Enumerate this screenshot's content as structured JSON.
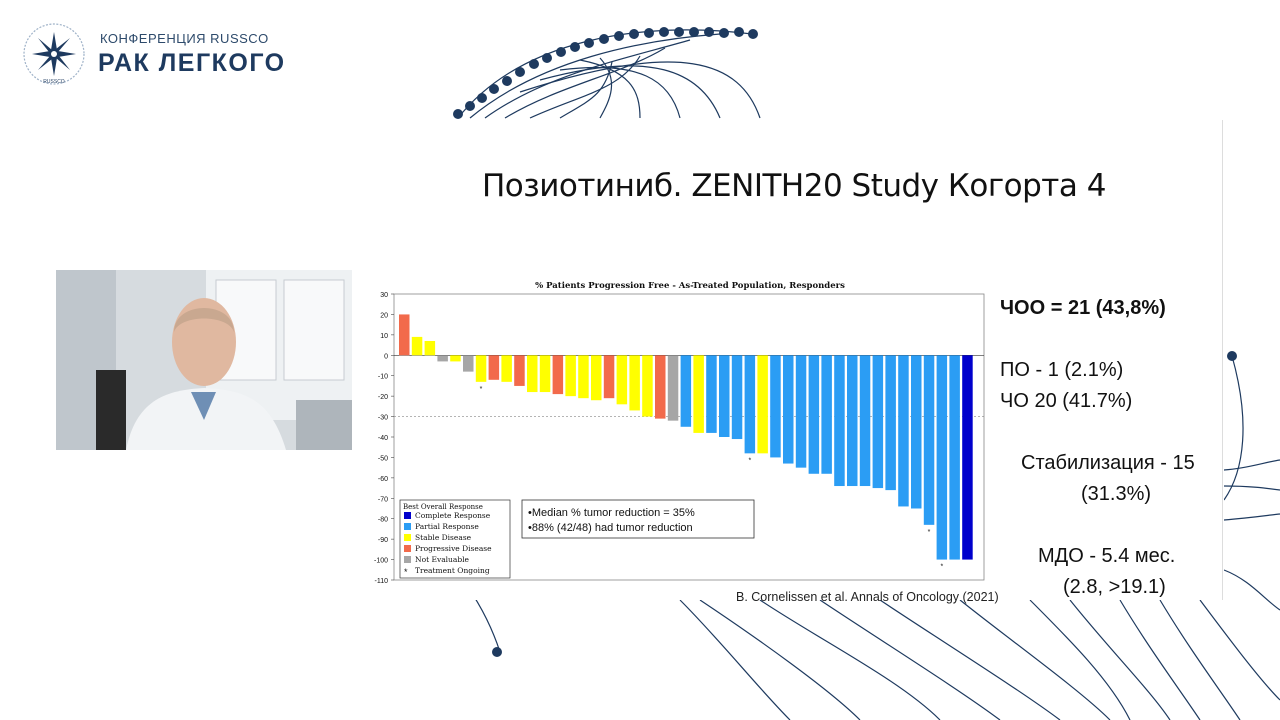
{
  "brand": {
    "subtitle": "КОНФЕРЕНЦИЯ RUSSCO",
    "title": "РАК ЛЕГКОГО",
    "logo_text": "RUSSCO",
    "color": "#1e3a5f"
  },
  "slide": {
    "title": "Позиотиниб. ZENITH20 Study Когорта 4",
    "stats": {
      "orr": "ЧОО = 21 (43,8%)",
      "cr": "ПО - 1 (2.1%)",
      "pr": "ЧО 20 (41.7%)",
      "sd_line1": "Стабилизация - 15",
      "sd_line2": "(31.3%)",
      "dor_line1": "МДО - 5.4 мес.",
      "dor_line2": "(2.8, >19.1)"
    },
    "citation": "B. Cornelissen et al. Annals of Oncology (2021)"
  },
  "webcam": {
    "icon": "presenter-video-icon"
  },
  "chart_data": {
    "type": "bar",
    "title": "% Patients Progression Free - As-Treated Population, Responders",
    "xlabel": "",
    "ylabel": "",
    "ylim": [
      -110,
      30
    ],
    "yticks": [
      30,
      20,
      10,
      0,
      -10,
      -20,
      -30,
      -40,
      -50,
      -60,
      -70,
      -80,
      -90,
      -100,
      -110
    ],
    "reference_line": -30,
    "grid": false,
    "legend_placement": "bottom-left",
    "legend": {
      "title": "Best Overall Response",
      "entries": [
        {
          "name": "Complete Response",
          "color": "#0000cc",
          "key": "CR"
        },
        {
          "name": "Partial Response",
          "color": "#2b9df4",
          "key": "PR"
        },
        {
          "name": "Stable Disease",
          "color": "#ffff00",
          "key": "SD"
        },
        {
          "name": "Progressive Disease",
          "color": "#f26a4b",
          "key": "PD"
        },
        {
          "name": "Not Evaluable",
          "color": "#a6a6a6",
          "key": "NE"
        },
        {
          "name": "Treatment Ongoing",
          "symbol": "*",
          "key": "ongoing"
        }
      ]
    },
    "annotations": [
      "•Median % tumor reduction = 35%",
      "•88% (42/48) had tumor reduction"
    ],
    "values": [
      20,
      9,
      7,
      -3,
      -3,
      -8,
      -13,
      -12,
      -13,
      -15,
      -18,
      -18,
      -19,
      -20,
      -21,
      -22,
      -21,
      -24,
      -27,
      -30,
      -31,
      -32,
      -35,
      -38,
      -38,
      -40,
      -41,
      -48,
      -48,
      -50,
      -53,
      -55,
      -58,
      -58,
      -64,
      -64,
      -64,
      -65,
      -66,
      -74,
      -75,
      -83,
      -100,
      -100,
      -100
    ],
    "responses": [
      "PD",
      "SD",
      "SD",
      "NE",
      "SD",
      "NE",
      "SD",
      "PD",
      "SD",
      "PD",
      "SD",
      "SD",
      "PD",
      "SD",
      "SD",
      "SD",
      "PD",
      "SD",
      "SD",
      "SD",
      "PD",
      "NE",
      "PR",
      "SD",
      "PR",
      "PR",
      "PR",
      "PR",
      "SD",
      "PR",
      "PR",
      "PR",
      "PR",
      "PR",
      "PR",
      "PR",
      "PR",
      "PR",
      "PR",
      "PR",
      "PR",
      "PR",
      "PR",
      "PR",
      "CR"
    ],
    "ongoing_indices": [
      6,
      27,
      41,
      42
    ]
  }
}
